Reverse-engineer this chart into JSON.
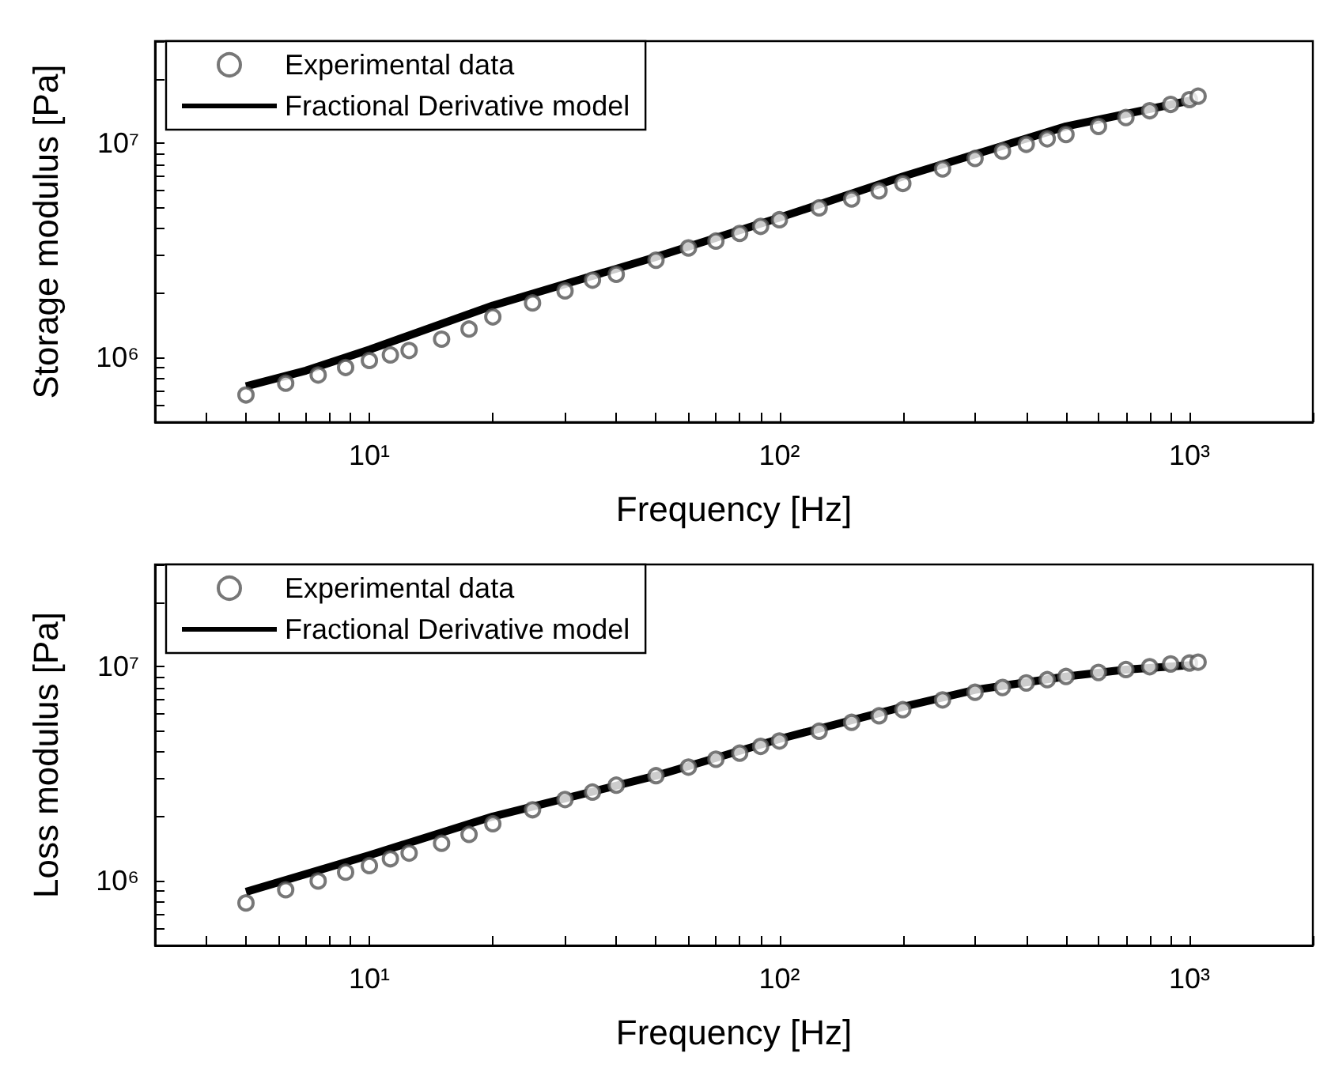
{
  "chart_data": [
    {
      "type": "scatter",
      "xlabel": "Frequency [Hz]",
      "ylabel": "Storage modulus [Pa]",
      "log": "xy",
      "grid": false,
      "legend": "top left",
      "line_style": "solid",
      "xlim": [
        3,
        2000
      ],
      "ylim": [
        500000,
        30000000
      ],
      "xticks": [
        {
          "value": 3,
          "label": null
        },
        {
          "value": 4,
          "label": null
        },
        {
          "value": 5,
          "label": null
        },
        {
          "value": 6,
          "label": null
        },
        {
          "value": 7,
          "label": null
        },
        {
          "value": 8,
          "label": null
        },
        {
          "value": 9,
          "label": null
        },
        {
          "value": 10,
          "label": "10¹"
        },
        {
          "value": 20,
          "label": null
        },
        {
          "value": 30,
          "label": null
        },
        {
          "value": 40,
          "label": null
        },
        {
          "value": 50,
          "label": null
        },
        {
          "value": 60,
          "label": null
        },
        {
          "value": 70,
          "label": null
        },
        {
          "value": 80,
          "label": null
        },
        {
          "value": 90,
          "label": null
        },
        {
          "value": 100,
          "label": "10²"
        },
        {
          "value": 200,
          "label": null
        },
        {
          "value": 300,
          "label": null
        },
        {
          "value": 400,
          "label": null
        },
        {
          "value": 500,
          "label": null
        },
        {
          "value": 600,
          "label": null
        },
        {
          "value": 700,
          "label": null
        },
        {
          "value": 800,
          "label": null
        },
        {
          "value": 900,
          "label": null
        },
        {
          "value": 1000,
          "label": "10³"
        },
        {
          "value": 2000,
          "label": null
        }
      ],
      "yticks": [
        {
          "value": 500000,
          "label": null
        },
        {
          "value": 600000,
          "label": null
        },
        {
          "value": 700000,
          "label": null
        },
        {
          "value": 800000,
          "label": null
        },
        {
          "value": 900000,
          "label": null
        },
        {
          "value": 1000000,
          "label": "10⁶"
        },
        {
          "value": 2000000,
          "label": null
        },
        {
          "value": 3000000,
          "label": null
        },
        {
          "value": 4000000,
          "label": null
        },
        {
          "value": 5000000,
          "label": null
        },
        {
          "value": 6000000,
          "label": null
        },
        {
          "value": 7000000,
          "label": null
        },
        {
          "value": 8000000,
          "label": null
        },
        {
          "value": 9000000,
          "label": null
        },
        {
          "value": 10000000,
          "label": "10⁷"
        },
        {
          "value": 20000000,
          "label": null
        },
        {
          "value": 30000000,
          "label": null
        }
      ],
      "series": [
        {
          "name": "Experimental data",
          "color": "#555555",
          "marker": "circle",
          "x": [
            5,
            6.25,
            7.5,
            8.75,
            10,
            11.25,
            12.5,
            15,
            17.5,
            20,
            25,
            30,
            35,
            40,
            50,
            60,
            70,
            80,
            90,
            100,
            125,
            150,
            175,
            200,
            250,
            300,
            350,
            400,
            450,
            500,
            600,
            700,
            800,
            900,
            1000,
            1050
          ],
          "values": [
            670000,
            760000,
            830000,
            900000,
            970000,
            1030000,
            1080000,
            1220000,
            1360000,
            1550000,
            1800000,
            2050000,
            2300000,
            2450000,
            2850000,
            3250000,
            3500000,
            3800000,
            4100000,
            4400000,
            5000000,
            5500000,
            6000000,
            6500000,
            7600000,
            8500000,
            9200000,
            9900000,
            10500000,
            11000000,
            12000000,
            13200000,
            14200000,
            15200000,
            16000000,
            16600000
          ]
        },
        {
          "name": "Fractional Derivative model",
          "type": "line",
          "color": "#000000",
          "x": [
            5,
            7,
            10,
            20,
            50,
            100,
            200,
            500,
            1030
          ],
          "values": [
            735000,
            870000,
            1090000,
            1750000,
            2950000,
            4500000,
            7000000,
            12000000,
            16000000
          ]
        }
      ]
    },
    {
      "type": "scatter",
      "xlabel": "Frequency [Hz]",
      "ylabel": "Loss modulus [Pa]",
      "log": "xy",
      "grid": false,
      "legend": "top left",
      "line_style": "solid",
      "xlim": [
        3,
        2000
      ],
      "ylim": [
        500000,
        30000000
      ],
      "xticks": [
        {
          "value": 3,
          "label": null
        },
        {
          "value": 4,
          "label": null
        },
        {
          "value": 5,
          "label": null
        },
        {
          "value": 6,
          "label": null
        },
        {
          "value": 7,
          "label": null
        },
        {
          "value": 8,
          "label": null
        },
        {
          "value": 9,
          "label": null
        },
        {
          "value": 10,
          "label": "10¹"
        },
        {
          "value": 20,
          "label": null
        },
        {
          "value": 30,
          "label": null
        },
        {
          "value": 40,
          "label": null
        },
        {
          "value": 50,
          "label": null
        },
        {
          "value": 60,
          "label": null
        },
        {
          "value": 70,
          "label": null
        },
        {
          "value": 80,
          "label": null
        },
        {
          "value": 90,
          "label": null
        },
        {
          "value": 100,
          "label": "10²"
        },
        {
          "value": 200,
          "label": null
        },
        {
          "value": 300,
          "label": null
        },
        {
          "value": 400,
          "label": null
        },
        {
          "value": 500,
          "label": null
        },
        {
          "value": 600,
          "label": null
        },
        {
          "value": 700,
          "label": null
        },
        {
          "value": 800,
          "label": null
        },
        {
          "value": 900,
          "label": null
        },
        {
          "value": 1000,
          "label": "10³"
        },
        {
          "value": 2000,
          "label": null
        }
      ],
      "yticks": [
        {
          "value": 500000,
          "label": null
        },
        {
          "value": 600000,
          "label": null
        },
        {
          "value": 700000,
          "label": null
        },
        {
          "value": 800000,
          "label": null
        },
        {
          "value": 900000,
          "label": null
        },
        {
          "value": 1000000,
          "label": "10⁶"
        },
        {
          "value": 2000000,
          "label": null
        },
        {
          "value": 3000000,
          "label": null
        },
        {
          "value": 4000000,
          "label": null
        },
        {
          "value": 5000000,
          "label": null
        },
        {
          "value": 6000000,
          "label": null
        },
        {
          "value": 7000000,
          "label": null
        },
        {
          "value": 8000000,
          "label": null
        },
        {
          "value": 9000000,
          "label": null
        },
        {
          "value": 10000000,
          "label": "10⁷"
        },
        {
          "value": 20000000,
          "label": null
        },
        {
          "value": 30000000,
          "label": null
        }
      ],
      "series": [
        {
          "name": "Experimental data",
          "color": "#555555",
          "marker": "circle",
          "x": [
            5,
            6.25,
            7.5,
            8.75,
            10,
            11.25,
            12.5,
            15,
            17.5,
            20,
            25,
            30,
            35,
            40,
            50,
            60,
            70,
            80,
            90,
            100,
            125,
            150,
            175,
            200,
            250,
            300,
            350,
            400,
            450,
            500,
            600,
            700,
            800,
            900,
            1000,
            1050
          ],
          "values": [
            790000,
            910000,
            1000000,
            1100000,
            1180000,
            1270000,
            1350000,
            1500000,
            1650000,
            1850000,
            2150000,
            2400000,
            2600000,
            2800000,
            3100000,
            3400000,
            3700000,
            3950000,
            4250000,
            4500000,
            5000000,
            5500000,
            5900000,
            6300000,
            7000000,
            7600000,
            8000000,
            8400000,
            8700000,
            9000000,
            9400000,
            9700000,
            10000000,
            10300000,
            10400000,
            10500000
          ]
        },
        {
          "name": "Fractional Derivative model",
          "type": "line",
          "color": "#000000",
          "x": [
            5,
            10,
            20,
            50,
            100,
            200,
            300,
            500,
            700,
            1030
          ],
          "values": [
            890000,
            1320000,
            2000000,
            3100000,
            4600000,
            6500000,
            7800000,
            9000000,
            9700000,
            10200000
          ]
        }
      ]
    }
  ]
}
